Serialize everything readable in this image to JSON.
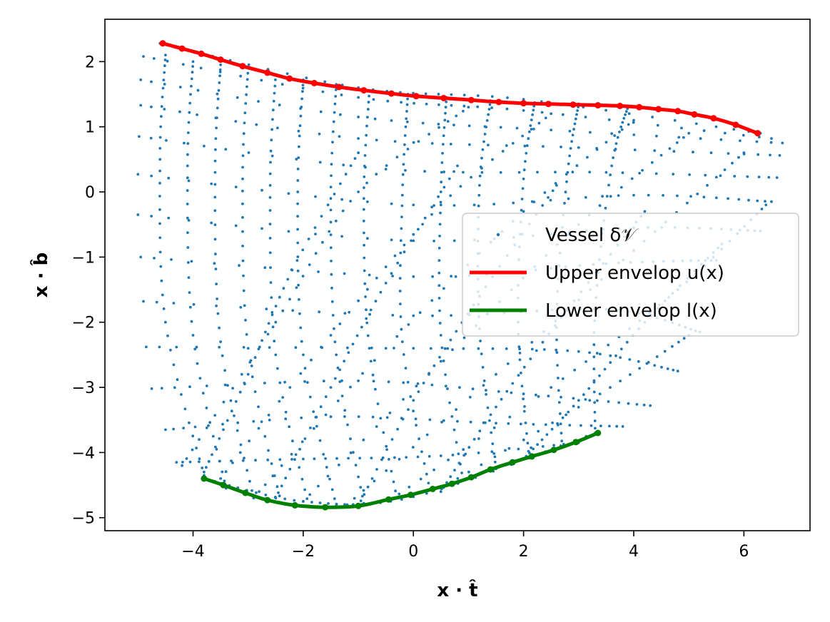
{
  "chart_data": {
    "type": "scatter",
    "xlabel": "x · t̂",
    "ylabel": "x · b̂",
    "xlim": [
      -5.6,
      7.2
    ],
    "ylim": [
      -5.2,
      2.65
    ],
    "xticks": [
      -4,
      -2,
      0,
      2,
      4,
      6
    ],
    "yticks": [
      -5,
      -4,
      -3,
      -2,
      -1,
      0,
      1,
      2
    ],
    "grid": false,
    "legend_position": "center-right",
    "colors": {
      "vessel": "#1f77b4",
      "upper": "#ff0000",
      "lower": "#008000"
    },
    "series": [
      {
        "name": "Vessel δ𝒱",
        "kind": "dotted-mesh",
        "rows": [
          [
            [
              -4.6,
              2.28
            ],
            [
              -1.0,
              1.6
            ],
            [
              2.0,
              1.42
            ],
            [
              6.3,
              0.9
            ]
          ],
          [
            [
              -4.9,
              2.08
            ],
            [
              -1.0,
              1.45
            ],
            [
              2.0,
              1.25
            ],
            [
              6.5,
              0.82
            ]
          ],
          [
            [
              -4.95,
              1.72
            ],
            [
              -1.0,
              1.15
            ],
            [
              2.5,
              0.95
            ],
            [
              6.7,
              0.75
            ]
          ],
          [
            [
              -4.95,
              1.33
            ],
            [
              -1.0,
              0.82
            ],
            [
              3.0,
              0.68
            ],
            [
              6.65,
              0.56
            ]
          ],
          [
            [
              -4.98,
              0.85
            ],
            [
              -0.5,
              0.35
            ],
            [
              3.5,
              0.3
            ],
            [
              6.6,
              0.22
            ]
          ],
          [
            [
              -5.0,
              0.27
            ],
            [
              0.0,
              -0.2
            ],
            [
              4.0,
              -0.05
            ],
            [
              6.5,
              -0.15
            ]
          ],
          [
            [
              -5.0,
              -0.35
            ],
            [
              0.0,
              -0.75
            ],
            [
              4.0,
              -0.55
            ],
            [
              6.3,
              -0.6
            ]
          ],
          [
            [
              -4.95,
              -1.0
            ],
            [
              0.0,
              -1.3
            ],
            [
              3.5,
              -1.1
            ],
            [
              5.5,
              -1.05
            ]
          ],
          [
            [
              -4.9,
              -1.68
            ],
            [
              0.0,
              -1.9
            ],
            [
              3.5,
              -1.8
            ],
            [
              5.2,
              -2.15
            ]
          ],
          [
            [
              -4.85,
              -2.38
            ],
            [
              0.0,
              -2.4
            ],
            [
              3.0,
              -2.45
            ],
            [
              4.8,
              -2.75
            ]
          ],
          [
            [
              -4.75,
              -3.02
            ],
            [
              -1.0,
              -2.9
            ],
            [
              2.0,
              -3.1
            ],
            [
              4.3,
              -3.28
            ]
          ],
          [
            [
              -4.5,
              -3.65
            ],
            [
              -1.5,
              -3.45
            ],
            [
              1.5,
              -3.55
            ],
            [
              3.8,
              -3.6
            ]
          ],
          [
            [
              -4.3,
              -4.15
            ],
            [
              -2.0,
              -4.1
            ],
            [
              0.5,
              -4.05
            ],
            [
              3.0,
              -3.85
            ]
          ],
          [
            [
              -3.8,
              -4.4
            ],
            [
              -2.0,
              -4.75
            ],
            [
              0.0,
              -4.68
            ],
            [
              3.3,
              -3.7
            ]
          ]
        ],
        "columns": [
          [
            [
              -3.8,
              -4.35
            ],
            [
              -4.5,
              -2.0
            ],
            [
              -4.6,
              0.5
            ],
            [
              -4.5,
              2.1
            ]
          ],
          [
            [
              -3.4,
              -4.55
            ],
            [
              -4.0,
              -2.2
            ],
            [
              -4.1,
              0.4
            ],
            [
              -4.0,
              2.0
            ]
          ],
          [
            [
              -2.9,
              -4.7
            ],
            [
              -3.5,
              -2.3
            ],
            [
              -3.6,
              0.3
            ],
            [
              -3.5,
              1.95
            ]
          ],
          [
            [
              -2.4,
              -4.78
            ],
            [
              -3.0,
              -2.4
            ],
            [
              -3.1,
              0.2
            ],
            [
              -3.0,
              1.9
            ]
          ],
          [
            [
              -1.9,
              -4.82
            ],
            [
              -2.5,
              -2.5
            ],
            [
              -2.6,
              0.1
            ],
            [
              -2.5,
              1.8
            ]
          ],
          [
            [
              -1.4,
              -4.82
            ],
            [
              -2.0,
              -2.5
            ],
            [
              -2.1,
              0.0
            ],
            [
              -2.0,
              1.72
            ]
          ],
          [
            [
              -0.9,
              -4.78
            ],
            [
              -1.4,
              -2.5
            ],
            [
              -1.5,
              -0.1
            ],
            [
              -1.4,
              1.65
            ]
          ],
          [
            [
              -0.3,
              -4.7
            ],
            [
              -0.8,
              -2.4
            ],
            [
              -0.9,
              -0.1
            ],
            [
              -0.8,
              1.55
            ]
          ],
          [
            [
              0.3,
              -4.58
            ],
            [
              -0.2,
              -2.3
            ],
            [
              -0.2,
              -0.05
            ],
            [
              -0.1,
              1.5
            ]
          ],
          [
            [
              0.9,
              -4.42
            ],
            [
              0.5,
              -2.2
            ],
            [
              0.5,
              0.0
            ],
            [
              0.6,
              1.45
            ]
          ],
          [
            [
              1.5,
              -4.25
            ],
            [
              1.2,
              -2.1
            ],
            [
              1.2,
              0.1
            ],
            [
              1.4,
              1.4
            ]
          ],
          [
            [
              2.1,
              -4.08
            ],
            [
              1.9,
              -2.0
            ],
            [
              2.0,
              0.2
            ],
            [
              2.2,
              1.37
            ]
          ],
          [
            [
              2.7,
              -3.92
            ],
            [
              2.6,
              -1.9
            ],
            [
              2.8,
              0.3
            ],
            [
              3.0,
              1.35
            ]
          ],
          [
            [
              3.3,
              -3.72
            ],
            [
              3.3,
              -1.8
            ],
            [
              3.6,
              0.4
            ],
            [
              3.9,
              1.32
            ]
          ]
        ],
        "diagonals": [
          [
            [
              -4.2,
              -4.2
            ],
            [
              -2.5,
              -2.0
            ],
            [
              -1.0,
              0.0
            ],
            [
              1.0,
              1.3
            ]
          ],
          [
            [
              -3.5,
              -4.4
            ],
            [
              -1.5,
              -2.2
            ],
            [
              0.5,
              -0.2
            ],
            [
              2.5,
              1.2
            ]
          ],
          [
            [
              -2.8,
              -4.6
            ],
            [
              -0.5,
              -2.4
            ],
            [
              2.0,
              -0.3
            ],
            [
              4.0,
              1.1
            ]
          ],
          [
            [
              -2.0,
              -4.75
            ],
            [
              0.5,
              -2.6
            ],
            [
              3.0,
              -0.5
            ],
            [
              5.0,
              0.9
            ]
          ],
          [
            [
              -1.2,
              -4.8
            ],
            [
              1.5,
              -2.8
            ],
            [
              4.0,
              -0.9
            ],
            [
              6.0,
              0.6
            ]
          ],
          [
            [
              -0.4,
              -4.72
            ],
            [
              2.5,
              -3.0
            ],
            [
              4.8,
              -1.5
            ],
            [
              6.4,
              -0.2
            ]
          ],
          [
            [
              0.5,
              -4.55
            ],
            [
              3.2,
              -3.2
            ],
            [
              5.0,
              -2.2
            ]
          ],
          [
            [
              -3.8,
              -4.3
            ],
            [
              -3.0,
              -2.8
            ],
            [
              -2.2,
              -1.2
            ],
            [
              -1.0,
              0.6
            ]
          ],
          [
            [
              -2.5,
              -4.7
            ],
            [
              -1.5,
              -3.0
            ],
            [
              -0.5,
              -1.4
            ],
            [
              0.8,
              0.4
            ]
          ],
          [
            [
              -1.0,
              -4.82
            ],
            [
              0.0,
              -3.2
            ],
            [
              1.2,
              -1.6
            ],
            [
              2.6,
              0.1
            ]
          ],
          [
            [
              0.5,
              -4.6
            ],
            [
              1.5,
              -3.3
            ],
            [
              2.8,
              -1.8
            ],
            [
              4.2,
              -0.3
            ]
          ],
          [
            [
              2.0,
              -4.1
            ],
            [
              3.0,
              -3.2
            ],
            [
              4.2,
              -2.0
            ],
            [
              5.6,
              -0.8
            ]
          ]
        ]
      },
      {
        "name": "Upper envelop u(x)",
        "x": [
          -4.55,
          -4.2,
          -3.85,
          -3.5,
          -3.1,
          -2.65,
          -2.25,
          -1.8,
          -1.35,
          -0.9,
          -0.4,
          0.05,
          0.55,
          1.05,
          1.55,
          2.0,
          2.45,
          2.9,
          3.35,
          3.75,
          4.1,
          4.45,
          4.8,
          5.1,
          5.45,
          5.85,
          6.25
        ],
        "y": [
          2.28,
          2.2,
          2.12,
          2.03,
          1.93,
          1.83,
          1.74,
          1.67,
          1.61,
          1.56,
          1.51,
          1.47,
          1.44,
          1.41,
          1.38,
          1.36,
          1.35,
          1.34,
          1.33,
          1.32,
          1.3,
          1.27,
          1.24,
          1.19,
          1.13,
          1.03,
          0.9
        ]
      },
      {
        "name": "Lower envelop l(x)",
        "x": [
          -3.8,
          -3.45,
          -3.05,
          -2.65,
          -2.15,
          -1.6,
          -1.0,
          -0.45,
          -0.05,
          0.35,
          0.7,
          1.05,
          1.4,
          1.8,
          2.15,
          2.55,
          2.95,
          3.35
        ],
        "y": [
          -4.4,
          -4.5,
          -4.62,
          -4.73,
          -4.81,
          -4.84,
          -4.82,
          -4.72,
          -4.65,
          -4.56,
          -4.48,
          -4.38,
          -4.26,
          -4.15,
          -4.06,
          -3.96,
          -3.84,
          -3.7
        ]
      }
    ],
    "legend": [
      {
        "label": "Vessel δ𝒱",
        "style": "dot",
        "color": "#1f77b4"
      },
      {
        "label": "Upper envelop u(x)",
        "style": "line",
        "color": "#ff0000"
      },
      {
        "label": "Lower envelop l(x)",
        "style": "line",
        "color": "#008000"
      }
    ]
  }
}
